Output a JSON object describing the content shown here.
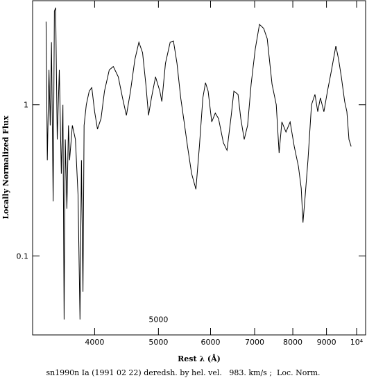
{
  "chart_data": {
    "type": "line",
    "xlabel": "Rest λ (Å)",
    "ylabel": "Locally Normalized Flux",
    "caption": "sn1990n Ia (1991 02 22) deredsh. by hel. vel.   983. km/s ;  Loc. Norm.",
    "annotation": {
      "text": "5000",
      "x": 5000,
      "y": 0.038
    },
    "xlog": true,
    "ylog": true,
    "color": "#000000",
    "xlim": [
      3220,
      10320
    ],
    "ylim": [
      0.03,
      4.88
    ],
    "xticks": [
      4000,
      5000,
      6000,
      7000,
      8000,
      9000,
      {
        "value": 10000,
        "label": "10⁴"
      }
    ],
    "yticks": [
      0.1,
      1
    ],
    "x": [
      3375,
      3390,
      3410,
      3425,
      3440,
      3460,
      3475,
      3490,
      3510,
      3535,
      3560,
      3580,
      3595,
      3610,
      3630,
      3650,
      3665,
      3700,
      3740,
      3775,
      3800,
      3820,
      3840,
      3855,
      3885,
      3925,
      3960,
      4000,
      4040,
      4090,
      4140,
      4210,
      4270,
      4345,
      4410,
      4470,
      4535,
      4605,
      4670,
      4730,
      4785,
      4830,
      4880,
      4950,
      5025,
      5060,
      5125,
      5210,
      5270,
      5335,
      5405,
      5470,
      5535,
      5615,
      5700,
      5770,
      5840,
      5895,
      5950,
      6025,
      6100,
      6170,
      6275,
      6355,
      6450,
      6510,
      6605,
      6670,
      6750,
      6830,
      6915,
      7015,
      7120,
      7225,
      7315,
      7440,
      7550,
      7625,
      7700,
      7810,
      7925,
      8040,
      8160,
      8240,
      8290,
      8355,
      8435,
      8540,
      8645,
      8730,
      8810,
      8920,
      9030,
      9160,
      9300,
      9390,
      9480,
      9590,
      9665,
      9735,
      9810
    ],
    "values": [
      3.55,
      0.43,
      1.7,
      0.73,
      2.59,
      0.23,
      4.16,
      4.39,
      0.59,
      1.7,
      0.35,
      1,
      0.038,
      0.59,
      0.205,
      0.73,
      0.43,
      0.73,
      0.59,
      0.253,
      0.038,
      0.43,
      0.058,
      0.73,
      1,
      1.23,
      1.3,
      0.9,
      0.69,
      0.81,
      1.23,
      1.7,
      1.79,
      1.53,
      1.11,
      0.85,
      1.23,
      1.99,
      2.59,
      2.21,
      1.37,
      0.85,
      1.11,
      1.53,
      1.23,
      1.05,
      1.88,
      2.59,
      2.64,
      1.88,
      1.11,
      0.77,
      0.53,
      0.35,
      0.276,
      0.53,
      1.11,
      1.4,
      1.23,
      0.77,
      0.88,
      0.81,
      0.56,
      0.5,
      0.85,
      1.23,
      1.17,
      0.81,
      0.59,
      0.73,
      1.37,
      2.33,
      3.4,
      3.2,
      2.73,
      1.37,
      1,
      0.48,
      0.77,
      0.66,
      0.77,
      0.53,
      0.39,
      0.28,
      0.166,
      0.253,
      0.43,
      1,
      1.17,
      0.9,
      1.11,
      0.9,
      1.23,
      1.7,
      2.45,
      1.99,
      1.53,
      1.05,
      0.9,
      0.59,
      0.53
    ]
  }
}
